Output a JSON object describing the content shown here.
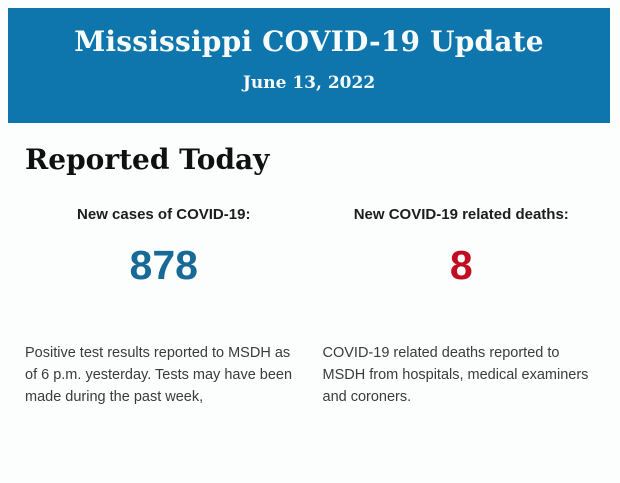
{
  "header": {
    "title": "Mississippi COVID-19 Update",
    "date": "June 13, 2022",
    "background_color": "#0e75ad",
    "text_color": "#f7fcfa"
  },
  "section": {
    "heading": "Reported Today"
  },
  "stats": [
    {
      "label": "New cases of COVID-19:",
      "value": "878",
      "value_color": "#176996",
      "description": "Positive test results reported to MSDH as of 6 p.m. yesterday. Tests may have been made during the past week,"
    },
    {
      "label": "New COVID-19 related deaths:",
      "value": "8",
      "value_color": "#c00d20",
      "description": "COVID-19 related deaths reported to MSDH from hospitals, medical examiners and coroners."
    }
  ]
}
